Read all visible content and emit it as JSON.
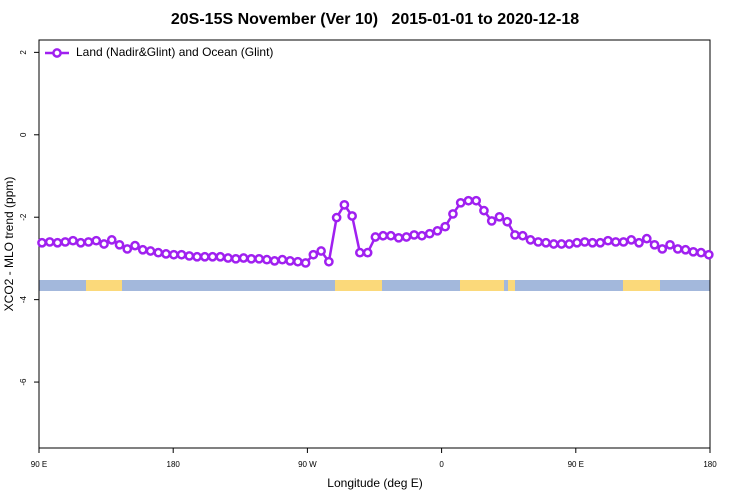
{
  "chart_data": {
    "type": "line",
    "title": "20S-15S November (Ver 10)   2015-01-01 to 2020-12-18",
    "x_label": "Longitude (deg E)",
    "y_label": "XCO2 - MLO trend (ppm)",
    "legend": "top-left",
    "xlim": [
      90,
      540
    ],
    "ylim": [
      -7.6,
      2.3
    ],
    "xticks": [
      {
        "value": 90,
        "label": "90 E"
      },
      {
        "value": 180,
        "label": "180"
      },
      {
        "value": 270,
        "label": "90 W"
      },
      {
        "value": 360,
        "label": "0"
      },
      {
        "value": 450,
        "label": "90 E"
      },
      {
        "value": 540,
        "label": "180"
      }
    ],
    "yticks": [
      2,
      0,
      -2,
      -4,
      -6
    ],
    "x": [
      92,
      97.2,
      102.4,
      107.6,
      112.8,
      118,
      123.2,
      128.4,
      133.6,
      138.8,
      144,
      149.2,
      154.4,
      159.6,
      164.8,
      170,
      175.2,
      180.4,
      185.6,
      190.8,
      196,
      201.2,
      206.4,
      211.6,
      216.8,
      222,
      227.2,
      232.4,
      237.6,
      242.8,
      248,
      253.2,
      258.4,
      263.6,
      268.8,
      274,
      279.2,
      284.4,
      289.6,
      294.8,
      300,
      305.2,
      310.4,
      315.6,
      320.8,
      326,
      331.2,
      336.4,
      341.6,
      346.8,
      352,
      357.2,
      362.4,
      367.6,
      372.8,
      378,
      383.2,
      388.4,
      393.6,
      398.8,
      404,
      409.2,
      414.4,
      419.6,
      424.8,
      430,
      435.2,
      440.4,
      445.6,
      450.8,
      456,
      461.2,
      466.4,
      471.6,
      476.8,
      482,
      487.2,
      492.4,
      497.6,
      502.8,
      508,
      513.2,
      518.4,
      523.6,
      528.8,
      534,
      539.2
    ],
    "series": [
      {
        "name": "Land (Nadir&Glint) and Ocean (Glint)",
        "color": "#a020f0",
        "values": [
          -2.62,
          -2.6,
          -2.62,
          -2.6,
          -2.57,
          -2.62,
          -2.6,
          -2.57,
          -2.65,
          -2.55,
          -2.67,
          -2.77,
          -2.69,
          -2.79,
          -2.82,
          -2.86,
          -2.89,
          -2.91,
          -2.91,
          -2.94,
          -2.96,
          -2.96,
          -2.96,
          -2.96,
          -2.99,
          -3.01,
          -2.99,
          -3.01,
          -3.01,
          -3.03,
          -3.06,
          -3.03,
          -3.06,
          -3.08,
          -3.11,
          -2.91,
          -2.82,
          -3.08,
          -2.01,
          -1.7,
          -1.97,
          -2.86,
          -2.86,
          -2.48,
          -2.45,
          -2.45,
          -2.5,
          -2.48,
          -2.43,
          -2.45,
          -2.4,
          -2.33,
          -2.23,
          -1.92,
          -1.65,
          -1.6,
          -1.6,
          -1.84,
          -2.09,
          -1.99,
          -2.11,
          -2.43,
          -2.45,
          -2.55,
          -2.6,
          -2.62,
          -2.65,
          -2.65,
          -2.65,
          -2.62,
          -2.6,
          -2.62,
          -2.62,
          -2.57,
          -2.6,
          -2.6,
          -2.55,
          -2.62,
          -2.52,
          -2.67,
          -2.77,
          -2.67,
          -2.77,
          -2.79,
          -2.84,
          -2.86,
          -2.91
        ]
      }
    ]
  }
}
